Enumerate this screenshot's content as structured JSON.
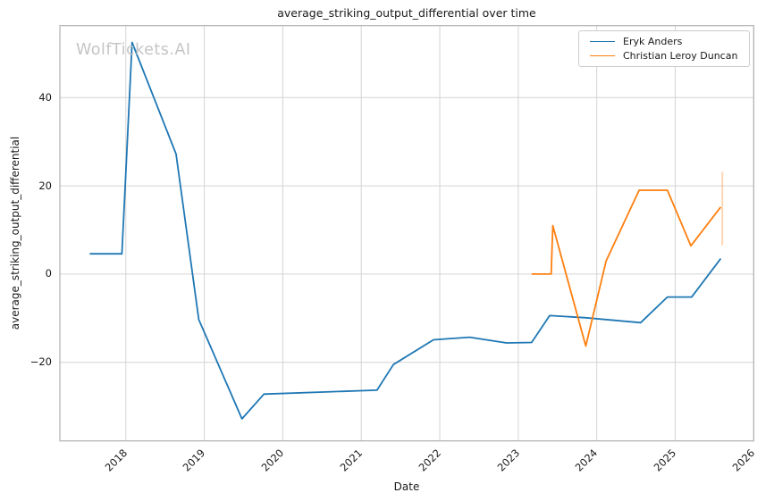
{
  "watermark": "WolfTickets.AI",
  "chart_data": {
    "type": "line",
    "title": "average_striking_output_differential over time",
    "xlabel": "Date",
    "ylabel": "average_striking_output_differential",
    "xlim": [
      2017.16,
      2026.0
    ],
    "ylim": [
      -37.8,
      56.3
    ],
    "x_ticks": [
      2018,
      2019,
      2020,
      2021,
      2022,
      2023,
      2024,
      2025,
      2026
    ],
    "y_ticks": [
      -20,
      0,
      20,
      40
    ],
    "y_tick_labels": [
      "−20",
      "0",
      "20",
      "40"
    ],
    "grid": true,
    "legend_position": "upper right",
    "colors": {
      "grid": "#d4d4d4",
      "spine": "#b0b0b0",
      "series1": "#1f77b4",
      "series2": "#ff7f0e"
    },
    "series": [
      {
        "name": "Eryk Anders",
        "color": "#1f77b4",
        "points": [
          [
            2017.54,
            4.6
          ],
          [
            2017.95,
            4.6
          ],
          [
            2018.08,
            52.5
          ],
          [
            2018.64,
            27.2
          ],
          [
            2018.93,
            -10.3
          ],
          [
            2019.48,
            -32.8
          ],
          [
            2019.76,
            -27.2
          ],
          [
            2021.2,
            -26.3
          ],
          [
            2021.41,
            -20.5
          ],
          [
            2021.92,
            -14.9
          ],
          [
            2022.38,
            -14.3
          ],
          [
            2022.85,
            -15.6
          ],
          [
            2023.17,
            -15.5
          ],
          [
            2023.4,
            -9.4
          ],
          [
            2023.86,
            -9.9
          ],
          [
            2024.56,
            -11.0
          ],
          [
            2024.9,
            -5.2
          ],
          [
            2025.21,
            -5.2
          ],
          [
            2025.58,
            3.5
          ]
        ]
      },
      {
        "name": "Christian Leroy Duncan",
        "color": "#ff7f0e",
        "points": [
          [
            2023.17,
            0.0
          ],
          [
            2023.42,
            0.0
          ],
          [
            2023.44,
            11.0
          ],
          [
            2023.86,
            -16.3
          ],
          [
            2024.12,
            3.0
          ],
          [
            2024.54,
            19.0
          ],
          [
            2024.9,
            19.0
          ],
          [
            2025.2,
            6.4
          ],
          [
            2025.58,
            15.2
          ]
        ]
      }
    ],
    "annotations": [
      {
        "type": "vline",
        "x": 2025.6,
        "y_from": 6.5,
        "y_to": 23.2,
        "color": "#ff7f0e",
        "opacity": 0.3
      }
    ]
  }
}
